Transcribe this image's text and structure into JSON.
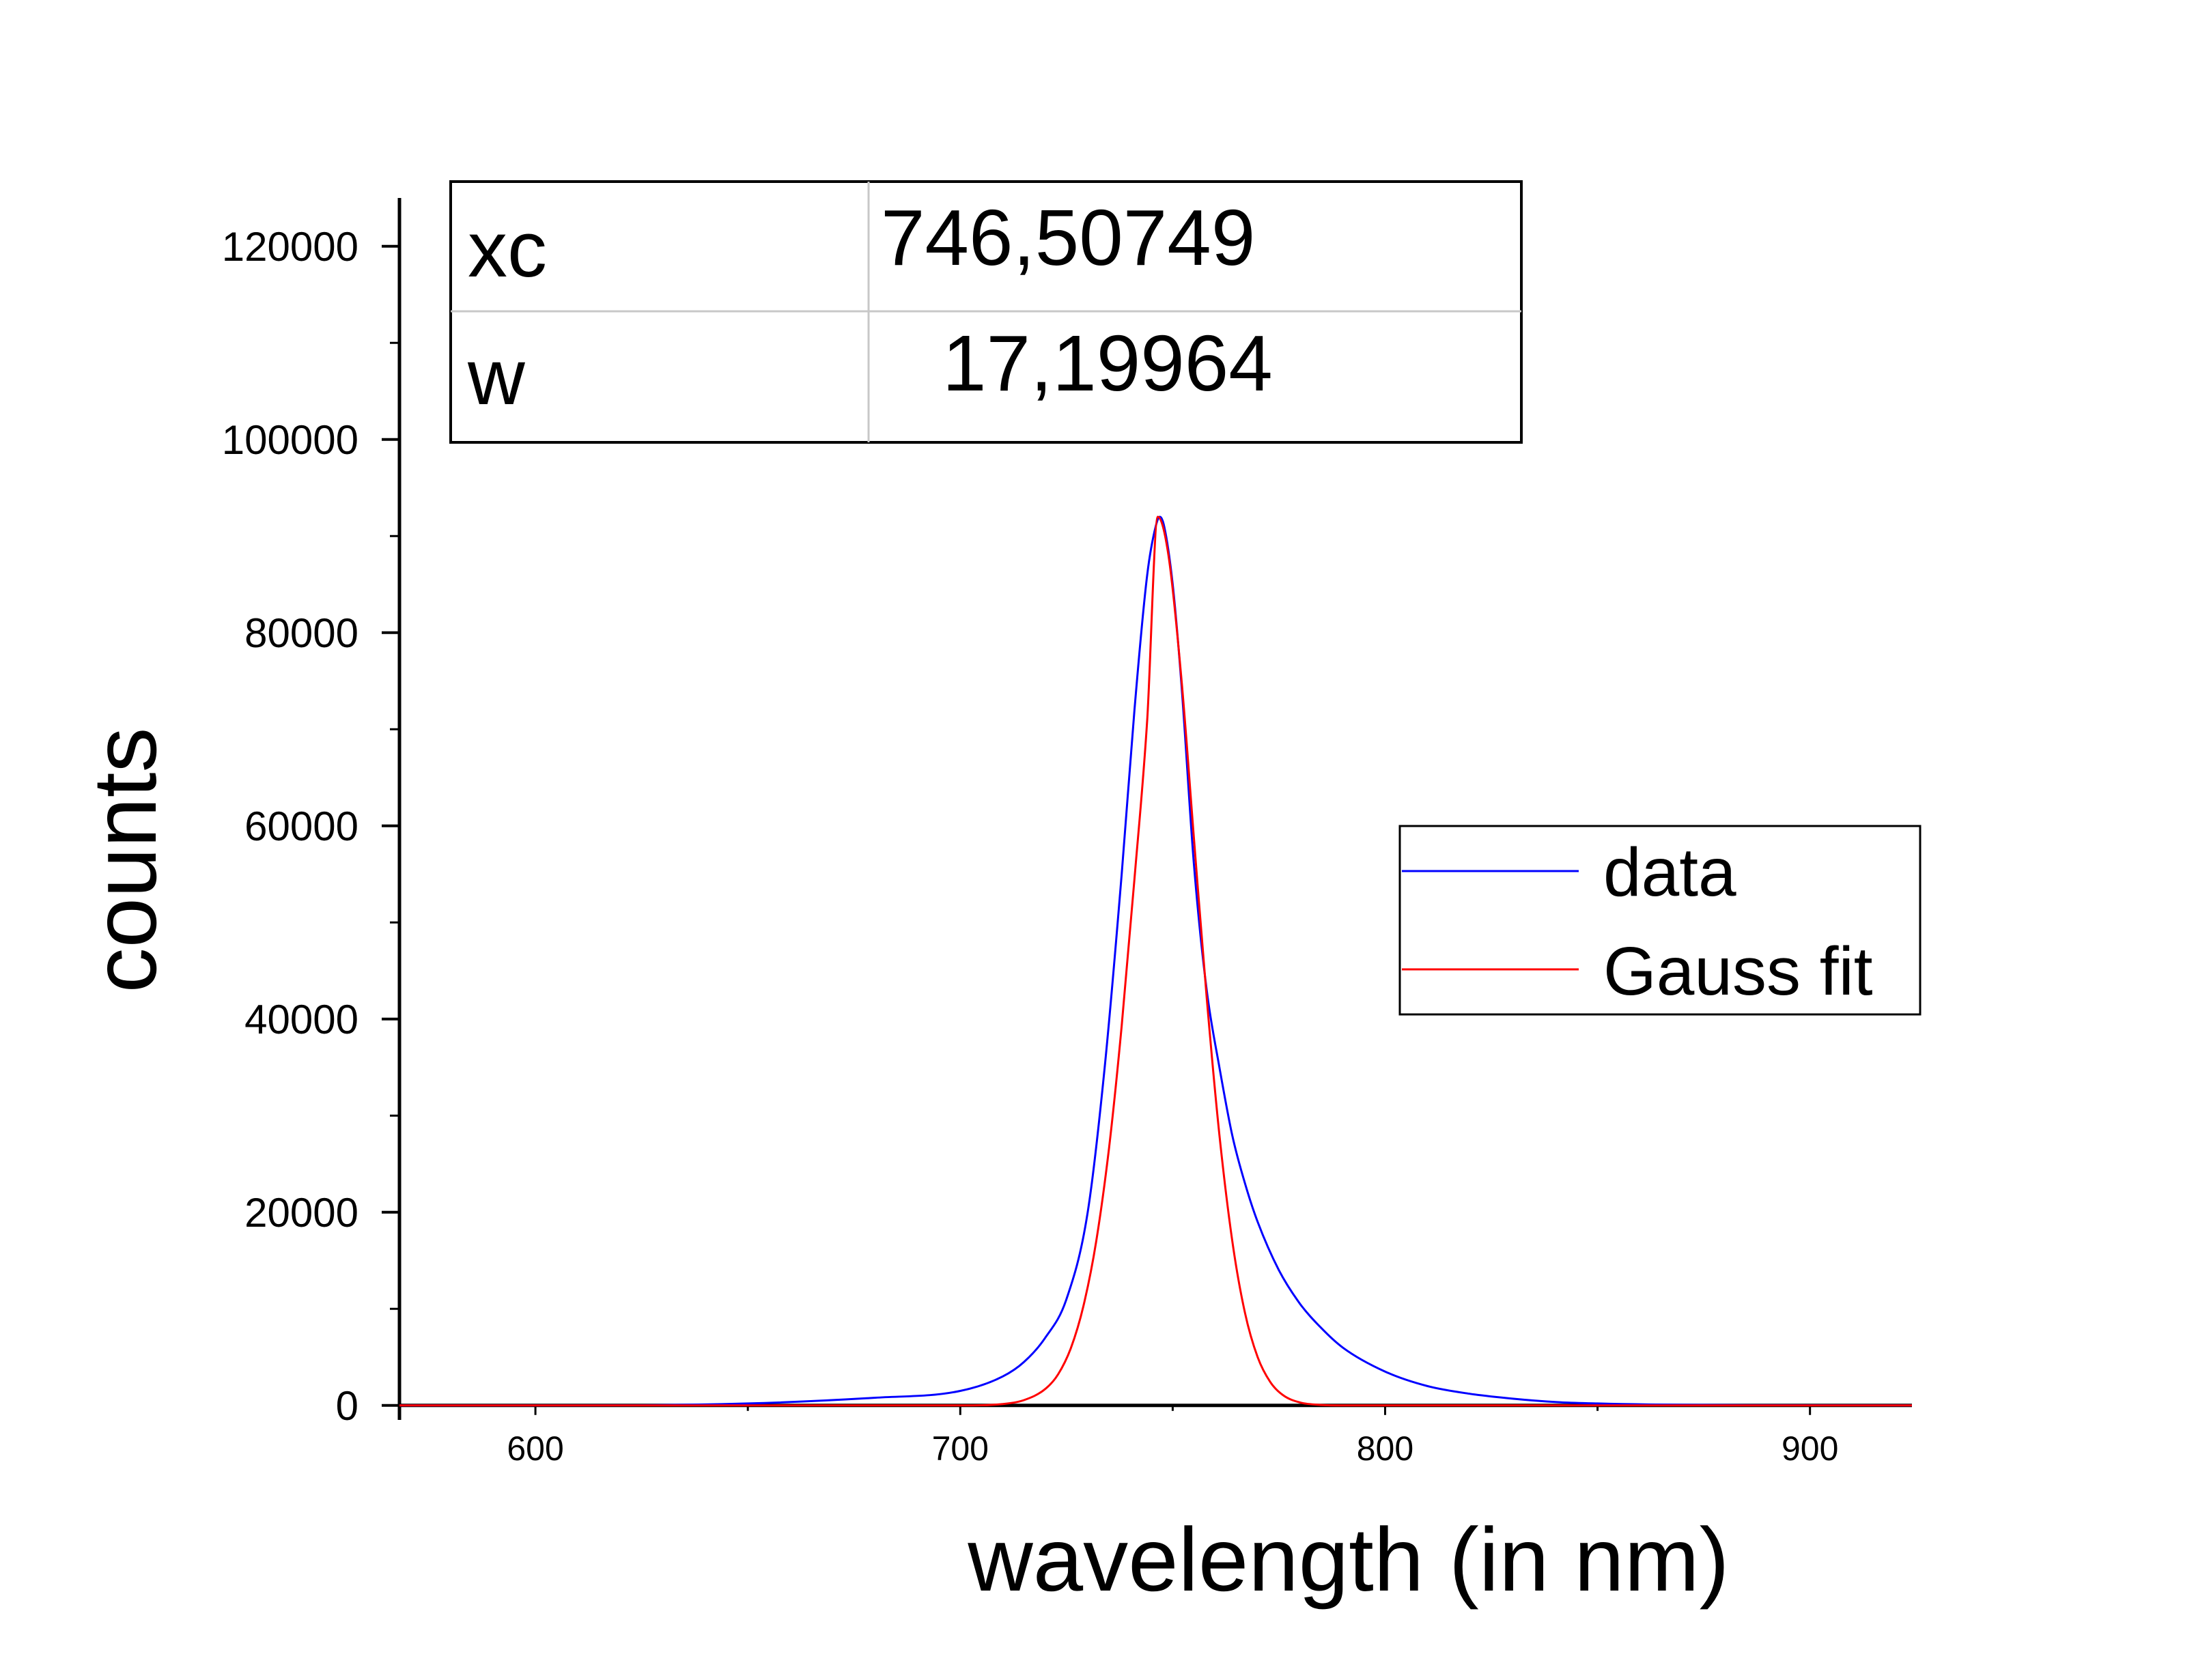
{
  "chart_data": {
    "type": "line",
    "xlabel": "wavelength (in nm)",
    "ylabel": "counts",
    "xlim": [
      568,
      924
    ],
    "ylim": [
      -1500,
      125000
    ],
    "x_ticks": [
      600,
      700,
      800,
      900
    ],
    "x_tick_labels": [
      "600",
      "700",
      "800",
      "900"
    ],
    "y_ticks": [
      0,
      20000,
      40000,
      60000,
      80000,
      100000,
      120000
    ],
    "y_tick_labels": [
      "0",
      "20000",
      "40000",
      "60000",
      "80000",
      "100000",
      "120000"
    ],
    "grid": false,
    "legend": {
      "position": "right",
      "entries": [
        "data",
        "Gauss fit"
      ]
    },
    "fit_table": {
      "rows": [
        {
          "param": "xc",
          "value": "746,50749"
        },
        {
          "param": "w",
          "value": "17,19964"
        }
      ]
    },
    "series": [
      {
        "name": "data",
        "color": "#0000ff",
        "x": [
          568,
          600,
          650,
          680,
          700,
          710,
          715,
          720,
          725,
          730,
          734,
          738,
          741,
          744,
          746,
          747,
          748,
          750,
          752,
          755,
          758,
          761,
          764,
          767,
          770,
          775,
          780,
          785,
          790,
          800,
          810,
          820,
          830,
          840,
          850,
          870,
          900,
          924
        ],
        "y": [
          0,
          0,
          200,
          800,
          1500,
          3000,
          4500,
          7000,
          11000,
          20000,
          35000,
          55000,
          72000,
          86000,
          91000,
          92000,
          91000,
          85000,
          75000,
          56000,
          43000,
          35000,
          28000,
          23000,
          19000,
          14000,
          10500,
          8000,
          6000,
          3500,
          2000,
          1200,
          700,
          350,
          200,
          60,
          20,
          0
        ]
      },
      {
        "name": "Gauss fit",
        "color": "#ff0000",
        "x": [
          568,
          600,
          650,
          700,
          710,
          715,
          720,
          723,
          726,
          729,
          732,
          735,
          738,
          741,
          744,
          746.5,
          749,
          752,
          755,
          758,
          761,
          764,
          767,
          770,
          773,
          776,
          780,
          785,
          790,
          800,
          850,
          900,
          924
        ],
        "y": [
          0,
          0,
          0,
          0,
          150,
          550,
          1700,
          3200,
          5900,
          10300,
          17000,
          26600,
          39300,
          54500,
          71000,
          92000,
          88000,
          75500,
          58700,
          42200,
          28000,
          17100,
          9600,
          5000,
          2400,
          1050,
          300,
          50,
          5,
          0,
          0,
          0,
          0
        ]
      }
    ]
  }
}
